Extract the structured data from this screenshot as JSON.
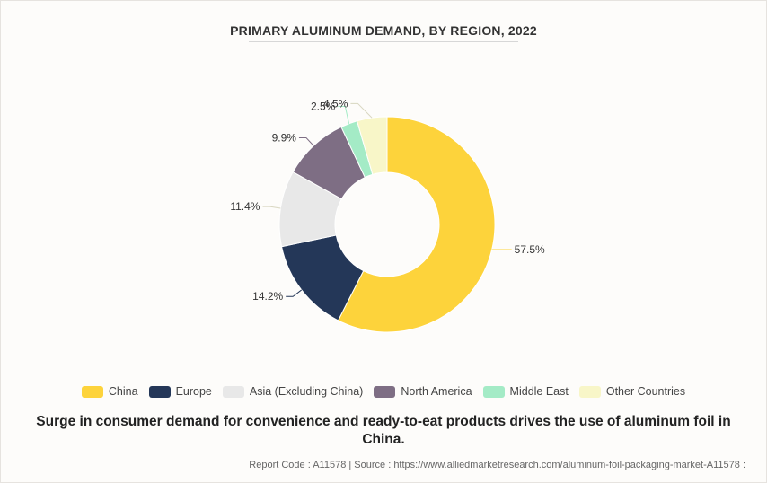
{
  "header": {
    "title": "PRIMARY ALUMINUM DEMAND, BY REGION, 2022"
  },
  "chart_data": {
    "type": "pie",
    "style": "donut",
    "title": "PRIMARY ALUMINUM DEMAND, BY REGION, 2022",
    "unit": "%",
    "slices": [
      {
        "name": "China",
        "value": 57.5,
        "label": "57.5%",
        "color": "#fdd33b"
      },
      {
        "name": "Europe",
        "value": 14.2,
        "label": "14.2%",
        "color": "#243758"
      },
      {
        "name": "Asia (Excluding China)",
        "value": 11.4,
        "label": "11.4%",
        "color": "#e8e8e8"
      },
      {
        "name": "North America",
        "value": 9.9,
        "label": "9.9%",
        "color": "#7e6e84"
      },
      {
        "name": "Middle East",
        "value": 2.5,
        "label": "2.5%",
        "color": "#a4ebc6"
      },
      {
        "name": "Other Countries",
        "value": 4.5,
        "label": "4.5%",
        "color": "#f8f6c8"
      }
    ],
    "legend_position": "bottom"
  },
  "subtitle": "Surge in consumer demand for convenience and ready-to-eat products drives the use of aluminum foil in China.",
  "footer": {
    "report_code_label": "Report Code : A11578",
    "separator": "|",
    "source_label": "Source : https://www.alliedmarketresearch.com/aluminum-foil-packaging-market-A11578 :"
  }
}
